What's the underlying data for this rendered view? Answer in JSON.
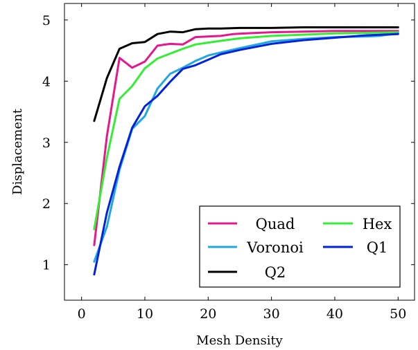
{
  "chart_data": {
    "type": "line",
    "xlabel": "Mesh Density",
    "ylabel": "Displacement",
    "xlim": [
      -2.7,
      52.6
    ],
    "ylim": [
      0.42,
      5.27
    ],
    "xticks": [
      0,
      10,
      20,
      30,
      40,
      50
    ],
    "yticks": [
      1,
      2,
      3,
      4,
      5
    ],
    "grid": false,
    "legend": {
      "placement": "bottom-right",
      "columns": 2
    },
    "series": [
      {
        "name": "Quad",
        "color": "#e6168e",
        "points": [
          [
            2,
            1.32
          ],
          [
            4,
            3.1
          ],
          [
            6,
            4.38
          ],
          [
            8,
            4.22
          ],
          [
            10,
            4.32
          ],
          [
            12,
            4.58
          ],
          [
            14,
            4.61
          ],
          [
            16,
            4.6
          ],
          [
            18,
            4.72
          ],
          [
            20,
            4.73
          ],
          [
            22,
            4.74
          ],
          [
            24,
            4.77
          ],
          [
            26,
            4.78
          ],
          [
            30,
            4.8
          ],
          [
            35,
            4.81
          ],
          [
            40,
            4.82
          ],
          [
            45,
            4.82
          ],
          [
            50,
            4.82
          ]
        ]
      },
      {
        "name": "Hex",
        "color": "#33ee33",
        "points": [
          [
            2,
            1.58
          ],
          [
            4,
            2.75
          ],
          [
            6,
            3.71
          ],
          [
            8,
            3.92
          ],
          [
            10,
            4.21
          ],
          [
            12,
            4.37
          ],
          [
            14,
            4.45
          ],
          [
            16,
            4.53
          ],
          [
            18,
            4.6
          ],
          [
            20,
            4.63
          ],
          [
            22,
            4.66
          ],
          [
            25,
            4.7
          ],
          [
            30,
            4.74
          ],
          [
            35,
            4.76
          ],
          [
            40,
            4.78
          ],
          [
            45,
            4.79
          ],
          [
            50,
            4.8
          ]
        ]
      },
      {
        "name": "Voronoi",
        "color": "#1fa8e0",
        "points": [
          [
            2,
            1.05
          ],
          [
            4,
            1.62
          ],
          [
            6,
            2.55
          ],
          [
            8,
            3.22
          ],
          [
            10,
            3.43
          ],
          [
            12,
            3.88
          ],
          [
            14,
            4.12
          ],
          [
            16,
            4.22
          ],
          [
            18,
            4.33
          ],
          [
            20,
            4.42
          ],
          [
            22,
            4.47
          ],
          [
            25,
            4.54
          ],
          [
            30,
            4.65
          ],
          [
            35,
            4.69
          ],
          [
            40,
            4.72
          ],
          [
            45,
            4.73
          ],
          [
            47,
            4.74
          ],
          [
            50,
            4.78
          ]
        ]
      },
      {
        "name": "Q1",
        "color": "#0022dd",
        "points": [
          [
            2,
            0.84
          ],
          [
            4,
            1.85
          ],
          [
            6,
            2.6
          ],
          [
            8,
            3.24
          ],
          [
            10,
            3.59
          ],
          [
            12,
            3.76
          ],
          [
            14,
            3.99
          ],
          [
            16,
            4.2
          ],
          [
            18,
            4.26
          ],
          [
            20,
            4.35
          ],
          [
            22,
            4.44
          ],
          [
            25,
            4.51
          ],
          [
            30,
            4.61
          ],
          [
            35,
            4.67
          ],
          [
            40,
            4.71
          ],
          [
            45,
            4.75
          ],
          [
            50,
            4.77
          ]
        ]
      },
      {
        "name": "Q2",
        "color": "#000000",
        "points": [
          [
            2,
            3.35
          ],
          [
            4,
            4.05
          ],
          [
            6,
            4.53
          ],
          [
            8,
            4.62
          ],
          [
            10,
            4.64
          ],
          [
            12,
            4.77
          ],
          [
            14,
            4.81
          ],
          [
            16,
            4.8
          ],
          [
            18,
            4.85
          ],
          [
            20,
            4.86
          ],
          [
            22,
            4.86
          ],
          [
            25,
            4.87
          ],
          [
            30,
            4.87
          ],
          [
            35,
            4.88
          ],
          [
            40,
            4.88
          ],
          [
            45,
            4.88
          ],
          [
            50,
            4.88
          ]
        ]
      }
    ]
  }
}
